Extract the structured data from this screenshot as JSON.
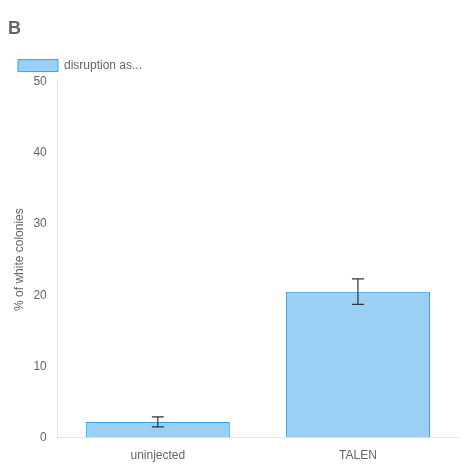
{
  "chart_data": {
    "type": "bar",
    "title": "B",
    "categories": [
      "uninjected",
      "TALEN"
    ],
    "series": [
      {
        "name": "disruption as...",
        "values": [
          2.2,
          20.5
        ],
        "errors": [
          0.7,
          1.8
        ]
      }
    ],
    "ylabel": "% of white colonies",
    "ylim": [
      0,
      50
    ],
    "yticks": [
      0,
      10,
      20,
      30,
      40,
      50
    ],
    "legend": "upper left",
    "grid": false
  }
}
